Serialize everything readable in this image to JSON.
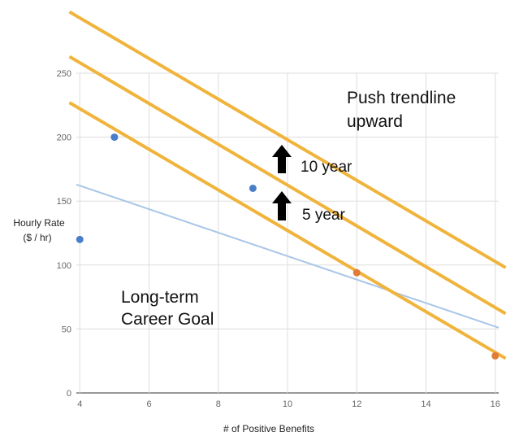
{
  "chart_data": {
    "type": "scatter",
    "title": "",
    "xlabel": "# of Positive Benefits",
    "ylabel": [
      "Hourly Rate",
      "($ / hr)"
    ],
    "xlim": [
      3.9,
      16.1
    ],
    "ylim": [
      0,
      250
    ],
    "xticks": [
      4,
      6,
      8,
      10,
      12,
      14,
      16
    ],
    "yticks": [
      0,
      50,
      100,
      150,
      200,
      250
    ],
    "grid": true,
    "legend": "none",
    "points": [
      {
        "x": 4,
        "y": 120,
        "color": "#4a7ec9"
      },
      {
        "x": 5,
        "y": 200,
        "color": "#4a7ec9"
      },
      {
        "x": 9,
        "y": 160,
        "color": "#4a7ec9"
      },
      {
        "x": 12,
        "y": 94,
        "color": "#e07b39"
      },
      {
        "x": 16,
        "y": 29,
        "color": "#e07b39"
      }
    ],
    "trendline": {
      "x": [
        3.9,
        16.1
      ],
      "y": [
        163,
        51
      ],
      "color": "#a9c6e8"
    },
    "goal_lines": [
      {
        "x": [
          3.7,
          16.3
        ],
        "y": [
          227,
          27
        ],
        "color": "#f0b43c"
      },
      {
        "x": [
          3.7,
          16.3
        ],
        "y": [
          263,
          62
        ],
        "color": "#f0b43c"
      },
      {
        "x": [
          3.7,
          16.3
        ],
        "y": [
          298,
          98
        ],
        "color": "#f0b43c"
      }
    ],
    "annotations": {
      "push_1": "Push trendline",
      "push_2": "upward",
      "ten_year": "10 year",
      "five_year": "5 year",
      "goal_1": "Long-term",
      "goal_2": "Career Goal"
    }
  }
}
